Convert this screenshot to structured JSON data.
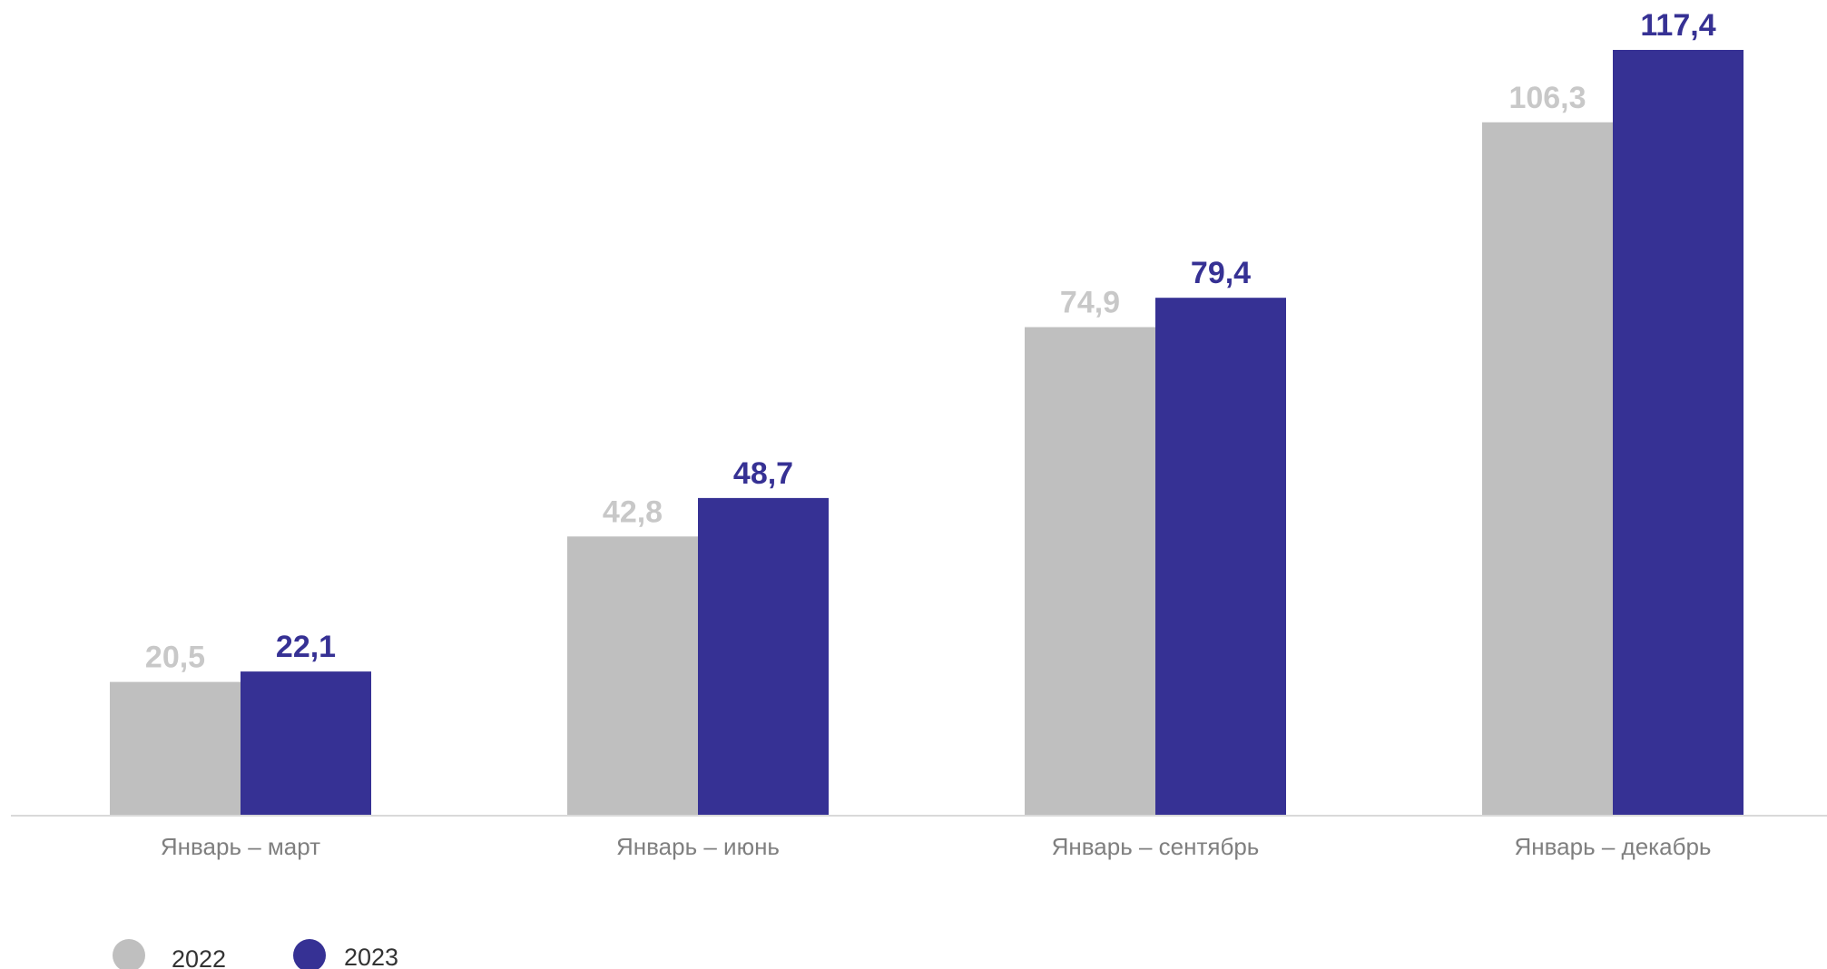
{
  "chart_data": {
    "type": "bar",
    "categories": [
      "Январь – март",
      "Январь – июнь",
      "Январь – сентябрь",
      "Январь – декабрь"
    ],
    "series": [
      {
        "name": "2022",
        "values": [
          20.5,
          42.8,
          74.9,
          106.3
        ],
        "labels": [
          "20,5",
          "42,8",
          "74,9",
          "106,3"
        ],
        "color": "#bfbfbf",
        "label_color": "#c8c8c8"
      },
      {
        "name": "2023",
        "values": [
          22.1,
          48.7,
          79.4,
          117.4
        ],
        "labels": [
          "22,1",
          "48,7",
          "79,4",
          "117,4"
        ],
        "color": "#363194",
        "label_color": "#363194"
      }
    ],
    "title": "",
    "xlabel": "",
    "ylabel": "",
    "ylim": [
      0,
      117.4
    ],
    "grid": false,
    "legend": "bottom-left",
    "axis_color": "#d9d9d9"
  }
}
